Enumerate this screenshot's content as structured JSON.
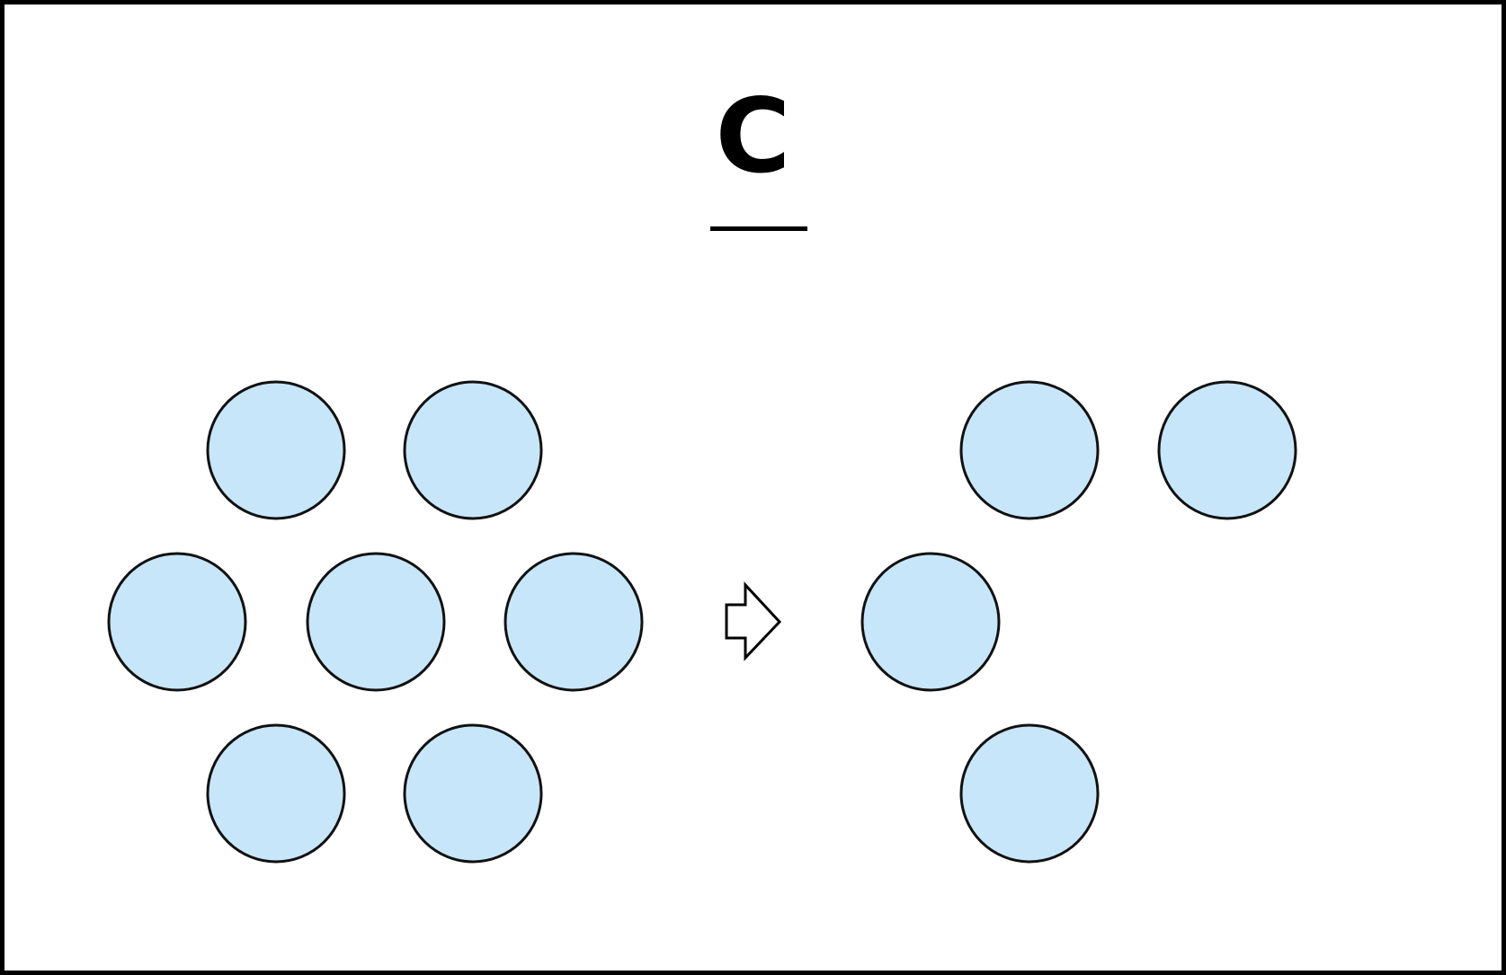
{
  "title": "C",
  "colors": {
    "circle_fill": "#c8e6fa",
    "circle_stroke": "#111111",
    "border": "#000000"
  },
  "left_group": {
    "count": 7
  },
  "right_group": {
    "count": 4
  },
  "arrow_icon": "right-arrow-icon"
}
